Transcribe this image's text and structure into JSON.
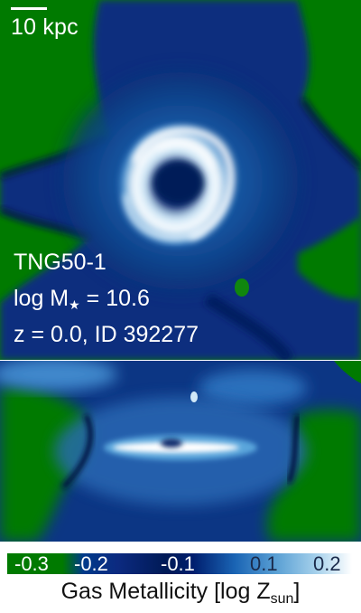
{
  "scale_bar": {
    "label": "10 kpc"
  },
  "info": {
    "simulation": "TNG50-1",
    "mass_prefix": "log M",
    "mass_sub": "★",
    "mass_suffix": " = 10.6",
    "redshift_id": "z = 0.0, ID 392277"
  },
  "colorbar": {
    "ticks": [
      "-0.3",
      "-0.2",
      "-0.1",
      "0.1",
      "0.2"
    ],
    "label_main": "Gas Metallicity [log Z",
    "label_sub": "sun",
    "label_end": "]"
  },
  "colors": {
    "low_metal_green": "#007a00",
    "dark_navy": "#001a56",
    "mid_blue": "#1a64b4",
    "light_blue": "#a8d2ec",
    "white": "#ffffff"
  }
}
